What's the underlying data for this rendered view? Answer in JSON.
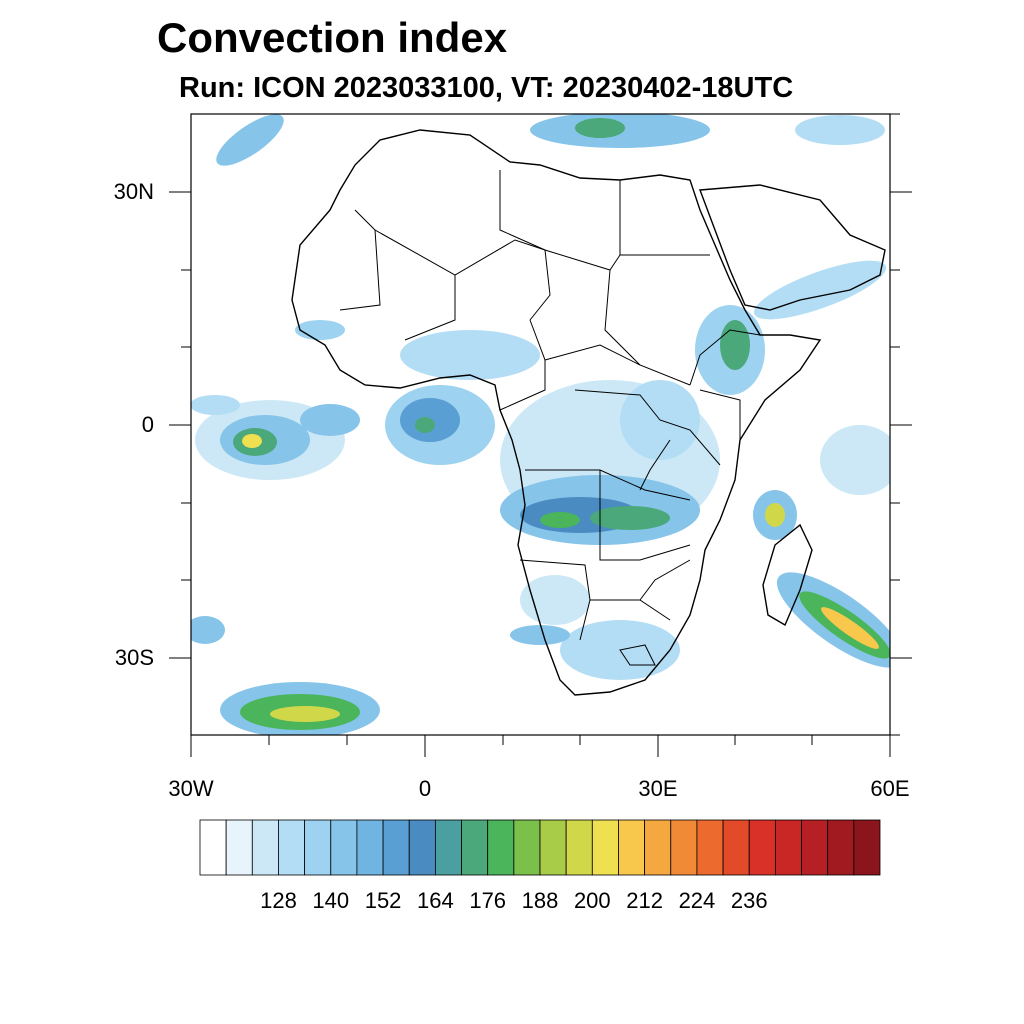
{
  "title": "Convection index",
  "subtitle": "Run: ICON 2023033100,  VT: 20230402-18UTC",
  "axes": {
    "lat_labels": [
      "30N",
      "0",
      "30S"
    ],
    "lon_labels": [
      "30W",
      "0",
      "30E",
      "60E"
    ]
  },
  "colorbar": {
    "labels": [
      "128",
      "140",
      "152",
      "164",
      "176",
      "188",
      "200",
      "212",
      "224",
      "236"
    ],
    "colors": [
      "#ffffff",
      "#e8f4fb",
      "#cce8f6",
      "#b3ddf4",
      "#9dd2f0",
      "#86c4ea",
      "#70b4e1",
      "#5a9fd4",
      "#4a8cc2",
      "#4a9fa0",
      "#4aa87a",
      "#4ab55a",
      "#7cc04c",
      "#a8cc48",
      "#d0d84a",
      "#eee050",
      "#f8c84c",
      "#f6a840",
      "#f08a36",
      "#ec6a2e",
      "#e34a2a",
      "#d93028",
      "#c92626",
      "#b61f24",
      "#a01a20",
      "#8a151c"
    ]
  },
  "map": {
    "lon_range": [
      -30,
      60
    ],
    "lat_range": [
      -40,
      40
    ],
    "field": "convection index"
  }
}
